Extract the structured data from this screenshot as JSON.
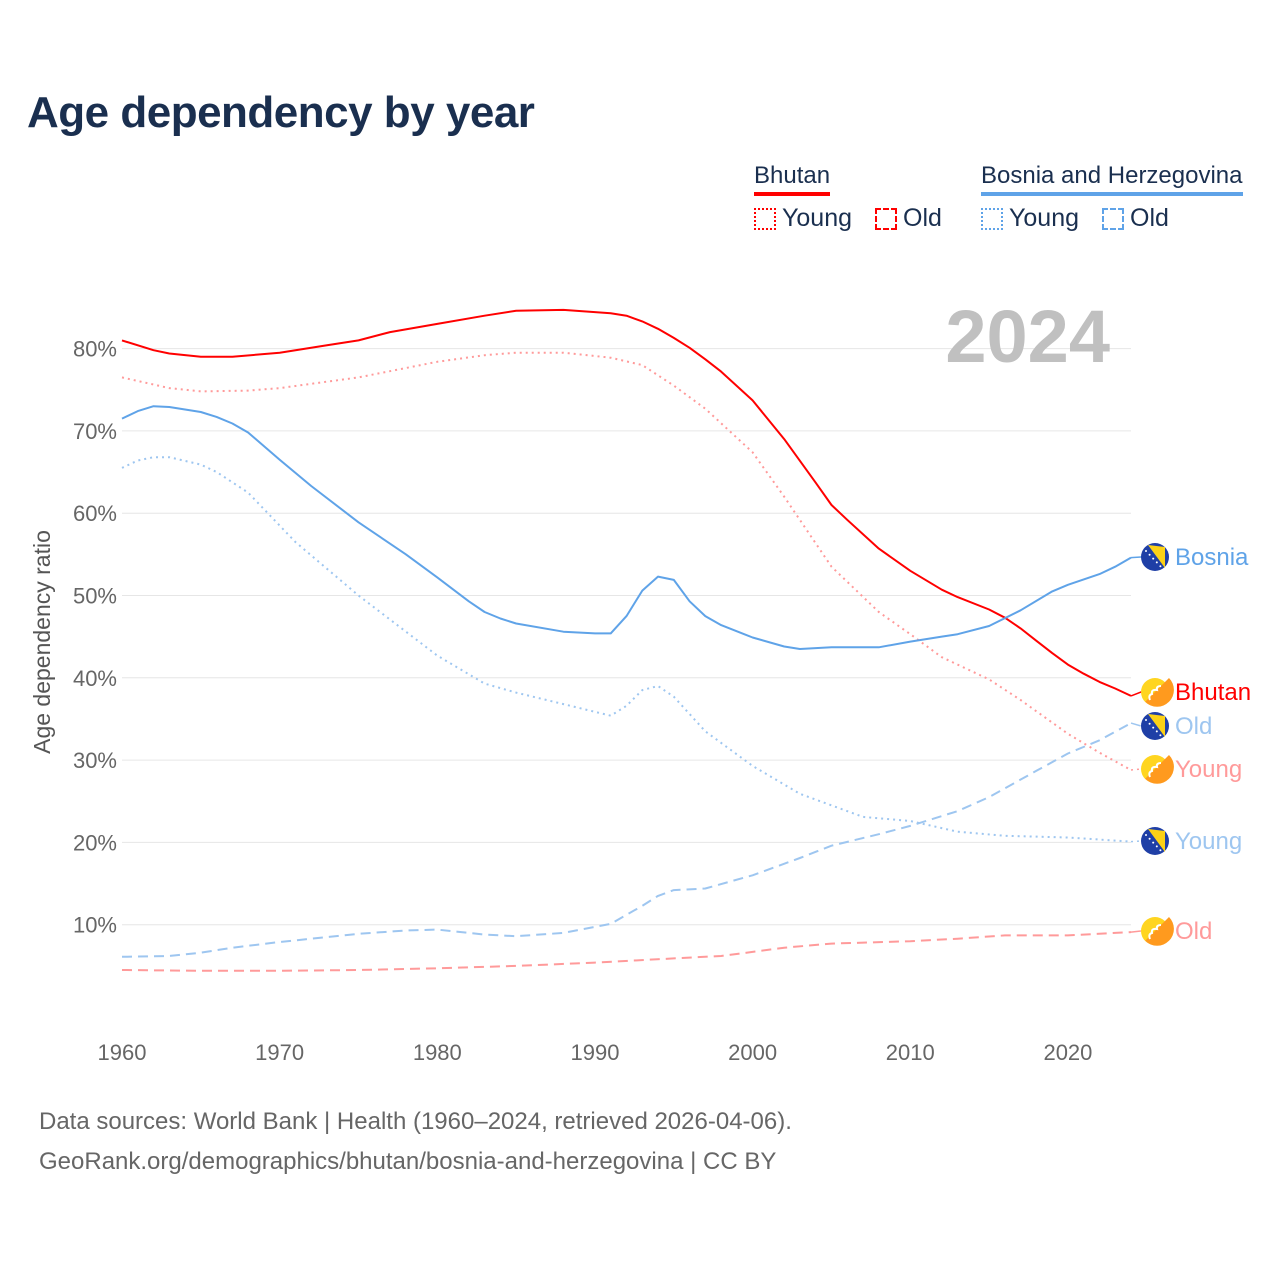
{
  "title": "Age dependency by year",
  "legend": {
    "groups": [
      {
        "country": "Bhutan",
        "color": "#ff0000",
        "items": [
          "Young",
          "Old"
        ]
      },
      {
        "country": "Bosnia and Herzegovina",
        "color": "#5fa3e8",
        "items": [
          "Young",
          "Old"
        ]
      }
    ]
  },
  "year_watermark": "2024",
  "source_line1": "Data sources: World Bank | Health (1960–2024, retrieved 2026-04-06).",
  "source_line2": "GeoRank.org/demographics/bhutan/bosnia-and-herzegovina | CC BY",
  "chart_data": {
    "type": "line",
    "title": "Age dependency by year",
    "xlabel": "",
    "ylabel": "Age dependency ratio",
    "xlim": [
      1960,
      2024
    ],
    "ylim": [
      0,
      85
    ],
    "xticks": [
      1960,
      1970,
      1980,
      1990,
      2000,
      2010,
      2020
    ],
    "yticks": [
      10,
      20,
      30,
      40,
      50,
      60,
      70,
      80
    ],
    "ytick_labels": [
      "10%",
      "20%",
      "30%",
      "40%",
      "50%",
      "60%",
      "70%",
      "80%"
    ],
    "grid": true,
    "series": [
      {
        "id": "bt_total",
        "name": "Bhutan",
        "end_label": "Bhutan",
        "flag": "bhutan",
        "color": "#ff0000",
        "style": "solid",
        "points": [
          [
            1960,
            81
          ],
          [
            1962,
            79.8
          ],
          [
            1963,
            79.4
          ],
          [
            1965,
            79
          ],
          [
            1967,
            79
          ],
          [
            1970,
            79.5
          ],
          [
            1973,
            80.4
          ],
          [
            1975,
            81
          ],
          [
            1977,
            82
          ],
          [
            1980,
            83
          ],
          [
            1983,
            84
          ],
          [
            1985,
            84.6
          ],
          [
            1988,
            84.7
          ],
          [
            1991,
            84.3
          ],
          [
            1992,
            84
          ],
          [
            1993,
            83.3
          ],
          [
            1994,
            82.4
          ],
          [
            1995,
            81.3
          ],
          [
            1996,
            80.1
          ],
          [
            1997,
            78.7
          ],
          [
            1998,
            77.2
          ],
          [
            2000,
            73.7
          ],
          [
            2002,
            69
          ],
          [
            2004,
            63.7
          ],
          [
            2005,
            61
          ],
          [
            2006,
            59.2
          ],
          [
            2008,
            55.7
          ],
          [
            2010,
            53
          ],
          [
            2012,
            50.7
          ],
          [
            2013,
            49.8
          ],
          [
            2015,
            48.3
          ],
          [
            2016,
            47.3
          ],
          [
            2017,
            46
          ],
          [
            2018,
            44.5
          ],
          [
            2019,
            43
          ],
          [
            2020,
            41.6
          ],
          [
            2021,
            40.5
          ],
          [
            2022,
            39.5
          ],
          [
            2023,
            38.7
          ],
          [
            2024,
            37.8
          ]
        ]
      },
      {
        "id": "bt_young",
        "name": "Bhutan Young",
        "end_label": "Young",
        "flag": "bhutan",
        "color": "#ff9a9a",
        "style": "dotted",
        "points": [
          [
            1960,
            76.5
          ],
          [
            1963,
            75.2
          ],
          [
            1965,
            74.8
          ],
          [
            1968,
            74.9
          ],
          [
            1970,
            75.2
          ],
          [
            1975,
            76.5
          ],
          [
            1980,
            78.4
          ],
          [
            1983,
            79.2
          ],
          [
            1985,
            79.5
          ],
          [
            1988,
            79.5
          ],
          [
            1991,
            78.9
          ],
          [
            1993,
            78
          ],
          [
            1995,
            75.5
          ],
          [
            1997,
            72.7
          ],
          [
            2000,
            67.4
          ],
          [
            2002,
            62
          ],
          [
            2005,
            53.5
          ],
          [
            2008,
            48
          ],
          [
            2010,
            45.3
          ],
          [
            2012,
            42.5
          ],
          [
            2015,
            39.8
          ],
          [
            2017,
            37.3
          ],
          [
            2020,
            33.2
          ],
          [
            2022,
            30.9
          ],
          [
            2024,
            28.8
          ]
        ]
      },
      {
        "id": "bt_old",
        "name": "Bhutan Old",
        "end_label": "Old",
        "flag": "bhutan",
        "color": "#ff9a9a",
        "style": "dashed",
        "points": [
          [
            1960,
            4.5
          ],
          [
            1965,
            4.4
          ],
          [
            1970,
            4.4
          ],
          [
            1975,
            4.5
          ],
          [
            1980,
            4.7
          ],
          [
            1985,
            5
          ],
          [
            1990,
            5.4
          ],
          [
            1995,
            5.9
          ],
          [
            1998,
            6.2
          ],
          [
            2000,
            6.7
          ],
          [
            2002,
            7.2
          ],
          [
            2005,
            7.7
          ],
          [
            2010,
            8
          ],
          [
            2013,
            8.3
          ],
          [
            2016,
            8.7
          ],
          [
            2020,
            8.7
          ],
          [
            2024,
            9.1
          ]
        ]
      },
      {
        "id": "ba_total",
        "name": "Bosnia",
        "end_label": "Bosnia",
        "flag": "bosnia",
        "color": "#5fa3e8",
        "style": "solid",
        "points": [
          [
            1960,
            71.5
          ],
          [
            1961,
            72.4
          ],
          [
            1962,
            73
          ],
          [
            1963,
            72.9
          ],
          [
            1965,
            72.3
          ],
          [
            1966,
            71.7
          ],
          [
            1967,
            70.9
          ],
          [
            1968,
            69.8
          ],
          [
            1970,
            66.5
          ],
          [
            1972,
            63.3
          ],
          [
            1975,
            58.9
          ],
          [
            1978,
            55
          ],
          [
            1980,
            52.2
          ],
          [
            1982,
            49.3
          ],
          [
            1983,
            48
          ],
          [
            1984,
            47.2
          ],
          [
            1985,
            46.6
          ],
          [
            1988,
            45.6
          ],
          [
            1990,
            45.4
          ],
          [
            1991,
            45.4
          ],
          [
            1992,
            47.5
          ],
          [
            1993,
            50.6
          ],
          [
            1994,
            52.3
          ],
          [
            1995,
            51.9
          ],
          [
            1996,
            49.3
          ],
          [
            1997,
            47.5
          ],
          [
            1998,
            46.4
          ],
          [
            2000,
            44.9
          ],
          [
            2002,
            43.8
          ],
          [
            2003,
            43.5
          ],
          [
            2005,
            43.7
          ],
          [
            2008,
            43.7
          ],
          [
            2010,
            44.4
          ],
          [
            2012,
            45
          ],
          [
            2013,
            45.3
          ],
          [
            2015,
            46.3
          ],
          [
            2017,
            48.2
          ],
          [
            2019,
            50.5
          ],
          [
            2020,
            51.3
          ],
          [
            2022,
            52.6
          ],
          [
            2023,
            53.5
          ],
          [
            2024,
            54.6
          ]
        ]
      },
      {
        "id": "ba_old",
        "name": "Bosnia Old",
        "end_label": "Old",
        "flag": "bosnia",
        "color": "#9ec6f0",
        "style": "dashed",
        "points": [
          [
            1960,
            6.1
          ],
          [
            1963,
            6.2
          ],
          [
            1965,
            6.6
          ],
          [
            1967,
            7.2
          ],
          [
            1970,
            7.9
          ],
          [
            1975,
            8.9
          ],
          [
            1978,
            9.3
          ],
          [
            1980,
            9.4
          ],
          [
            1983,
            8.8
          ],
          [
            1985,
            8.6
          ],
          [
            1988,
            9
          ],
          [
            1991,
            10.1
          ],
          [
            1993,
            12.3
          ],
          [
            1994,
            13.5
          ],
          [
            1995,
            14.2
          ],
          [
            1997,
            14.4
          ],
          [
            2000,
            16
          ],
          [
            2003,
            18.1
          ],
          [
            2005,
            19.6
          ],
          [
            2008,
            21
          ],
          [
            2010,
            22
          ],
          [
            2013,
            23.8
          ],
          [
            2015,
            25.5
          ],
          [
            2018,
            28.7
          ],
          [
            2020,
            30.8
          ],
          [
            2022,
            32.4
          ],
          [
            2024,
            34.5
          ]
        ]
      },
      {
        "id": "ba_young",
        "name": "Bosnia Young",
        "end_label": "Young",
        "flag": "bosnia",
        "color": "#9ec6f0",
        "style": "dotted",
        "points": [
          [
            1960,
            65.5
          ],
          [
            1961,
            66.4
          ],
          [
            1962,
            66.8
          ],
          [
            1963,
            66.8
          ],
          [
            1965,
            65.9
          ],
          [
            1966,
            65
          ],
          [
            1968,
            62.5
          ],
          [
            1971,
            56.5
          ],
          [
            1975,
            50
          ],
          [
            1980,
            42.7
          ],
          [
            1983,
            39.3
          ],
          [
            1985,
            38.2
          ],
          [
            1988,
            36.8
          ],
          [
            1991,
            35.4
          ],
          [
            1992,
            36.6
          ],
          [
            1993,
            38.5
          ],
          [
            1994,
            39
          ],
          [
            1995,
            37.7
          ],
          [
            1997,
            33.5
          ],
          [
            2000,
            29.3
          ],
          [
            2003,
            25.9
          ],
          [
            2005,
            24.5
          ],
          [
            2007,
            23.1
          ],
          [
            2010,
            22.6
          ],
          [
            2013,
            21.3
          ],
          [
            2016,
            20.8
          ],
          [
            2020,
            20.6
          ],
          [
            2024,
            20.1
          ]
        ]
      }
    ]
  }
}
